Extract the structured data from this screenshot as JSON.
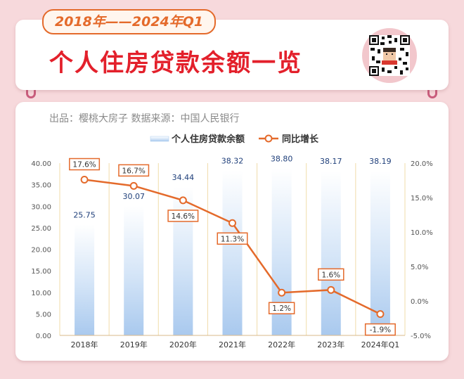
{
  "header": {
    "period": "2018年——2024年Q1",
    "title": "个人住房贷款余额一览",
    "qr_icon": "qr-code-icon"
  },
  "source_line": "出品：樱桃大房子  数据来源：中国人民银行",
  "colors": {
    "background": "#f7d9dc",
    "title_red": "#e3202b",
    "accent_orange": "#e46a2b",
    "bar_blue": "#a9c9ee",
    "bar_label": "#1f3f7a"
  },
  "chart_data": {
    "type": "bar",
    "categories": [
      "2018年",
      "2019年",
      "2020年",
      "2021年",
      "2022年",
      "2023年",
      "2024年Q1"
    ],
    "series": [
      {
        "name": "个人住房贷款余额",
        "type": "bar",
        "axis": "left",
        "values": [
          25.75,
          30.07,
          34.44,
          38.32,
          38.8,
          38.17,
          38.19
        ],
        "labels": [
          "25.75",
          "30.07",
          "34.44",
          "38.32",
          "38.80",
          "38.17",
          "38.19"
        ]
      },
      {
        "name": "同比增长",
        "type": "line",
        "axis": "right",
        "values": [
          17.6,
          16.7,
          14.6,
          11.3,
          1.2,
          1.6,
          -1.9
        ],
        "labels": [
          "17.6%",
          "16.7%",
          "14.6%",
          "11.3%",
          "1.2%",
          "1.6%",
          "-1.9%"
        ]
      }
    ],
    "y_left": {
      "min": 0,
      "max": 40,
      "ticks": [
        "0.00",
        "5.00",
        "10.00",
        "15.00",
        "20.00",
        "25.00",
        "30.00",
        "35.00",
        "40.00"
      ]
    },
    "y_right": {
      "min": -5,
      "max": 20,
      "ticks": [
        "-5.0%",
        "0.0%",
        "5.0%",
        "10.0%",
        "15.0%",
        "20.0%"
      ]
    },
    "legend_position": "top-center",
    "grid": "vertical"
  }
}
